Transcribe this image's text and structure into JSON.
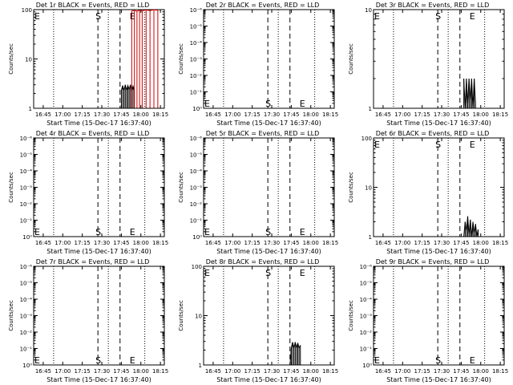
{
  "page": {
    "title_template": "BLACK = Events, RED = LLD",
    "x_title": "Start Time (15-Dec-17 16:37:40)",
    "y_title": "Counts/sec"
  },
  "colors": {
    "events": "#000000",
    "lld": "#cc0000",
    "axes": "#000000",
    "background": "#ffffff"
  },
  "chart_data": [
    {
      "type": "line",
      "title": "Det 1r BLACK = Events, RED = LLD",
      "xlabel": "Start Time (15-Dec-17 16:37:40)",
      "ylabel": "Counts/sec",
      "x_ticks": [
        "16:45",
        "17:00",
        "17:15",
        "17:30",
        "17:45",
        "18:00",
        "18:15"
      ],
      "y_ticks": [
        "1",
        "10",
        "100"
      ],
      "ylim": [
        1,
        100
      ],
      "yscale": "log",
      "markers": {
        "S": "17:27",
        "E": "17:44"
      },
      "marker_label_pos": "top",
      "series": [
        {
          "name": "Events",
          "x": [
            "17:45",
            "17:46",
            "17:47",
            "17:48",
            "17:49",
            "17:50",
            "17:51",
            "17:52",
            "17:53",
            "17:54",
            "17:55"
          ],
          "values": [
            2.3,
            2.9,
            2.3,
            3.0,
            2.3,
            2.9,
            2.4,
            3.0,
            2.3,
            2.8,
            2.3
          ]
        },
        {
          "name": "LLD",
          "x": [
            "17:53",
            "17:55",
            "17:57",
            "17:59",
            "18:01",
            "18:04",
            "18:07",
            "18:10",
            "18:13"
          ],
          "values": [
            95,
            96,
            93,
            97,
            95,
            98,
            96,
            99,
            97
          ]
        }
      ]
    },
    {
      "type": "line",
      "title": "Det 2r BLACK = Events, RED = LLD",
      "xlabel": "Start Time (15-Dec-17 16:37:40)",
      "ylabel": "Counts/sec",
      "x_ticks": [
        "16:45",
        "17:00",
        "17:15",
        "17:30",
        "17:45",
        "18:00",
        "18:15"
      ],
      "y_ticks": [
        "10⁰",
        "10⁻¹",
        "10⁻²",
        "10⁻³",
        "10⁻⁴",
        "10⁻⁵",
        "10⁻⁶"
      ],
      "ylim": [
        0,
        1
      ],
      "yscale": "log",
      "markers": {
        "S": "17:27",
        "E": "17:44"
      },
      "marker_label_pos": "bottom",
      "series": []
    },
    {
      "type": "line",
      "title": "Det 3r BLACK = Events, RED = LLD",
      "xlabel": "Start Time (15-Dec-17 16:37:40)",
      "ylabel": "Counts/sec",
      "x_ticks": [
        "16:45",
        "17:00",
        "17:15",
        "17:30",
        "17:45",
        "18:00",
        "18:15"
      ],
      "y_ticks": [
        "1",
        "10"
      ],
      "ylim": [
        1,
        10
      ],
      "yscale": "log",
      "markers": {
        "S": "17:27",
        "E": "17:44"
      },
      "marker_label_pos": "top",
      "series": [
        {
          "name": "Events",
          "x": [
            "17:47",
            "17:48",
            "17:49",
            "17:50",
            "17:51",
            "17:52",
            "17:53",
            "17:54",
            "17:55",
            "17:56"
          ],
          "values": [
            2.0,
            1.0,
            2.0,
            1.1,
            2.0,
            1.2,
            2.0,
            1.0,
            2.0,
            1.1
          ]
        }
      ]
    },
    {
      "type": "line",
      "title": "Det 4r BLACK = Events, RED = LLD",
      "xlabel": "Start Time (15-Dec-17 16:37:40)",
      "ylabel": "Counts/sec",
      "x_ticks": [
        "16:45",
        "17:00",
        "17:15",
        "17:30",
        "17:45",
        "18:00",
        "18:15"
      ],
      "y_ticks": [
        "10⁰",
        "10⁻¹",
        "10⁻²",
        "10⁻³",
        "10⁻⁴",
        "10⁻⁵",
        "10⁻⁶"
      ],
      "ylim": [
        0,
        1
      ],
      "yscale": "log",
      "markers": {
        "S": "17:27",
        "E": "17:44"
      },
      "marker_label_pos": "bottom",
      "series": []
    },
    {
      "type": "line",
      "title": "Det 5r BLACK = Events, RED = LLD",
      "xlabel": "Start Time (15-Dec-17 16:37:40)",
      "ylabel": "Counts/sec",
      "x_ticks": [
        "16:45",
        "17:00",
        "17:15",
        "17:30",
        "17:45",
        "18:00",
        "18:15"
      ],
      "y_ticks": [
        "10⁰",
        "10⁻¹",
        "10⁻²",
        "10⁻³",
        "10⁻⁴",
        "10⁻⁵",
        "10⁻⁶"
      ],
      "ylim": [
        0,
        1
      ],
      "yscale": "log",
      "markers": {
        "S": "17:27",
        "E": "17:44"
      },
      "marker_label_pos": "bottom",
      "series": []
    },
    {
      "type": "line",
      "title": "Det 6r BLACK = Events, RED = LLD",
      "xlabel": "Start Time (15-Dec-17 16:37:40)",
      "ylabel": "Counts/sec",
      "x_ticks": [
        "16:45",
        "17:00",
        "17:15",
        "17:30",
        "17:45",
        "18:00",
        "18:15"
      ],
      "y_ticks": [
        "1",
        "10",
        "100"
      ],
      "ylim": [
        1,
        100
      ],
      "yscale": "log",
      "markers": {
        "S": "17:27",
        "E": "17:44"
      },
      "marker_label_pos": "top",
      "series": [
        {
          "name": "Events",
          "x": [
            "17:47",
            "17:48",
            "17:49",
            "17:50",
            "17:51",
            "17:52",
            "17:53",
            "17:54",
            "17:55",
            "17:56",
            "17:57",
            "17:58"
          ],
          "values": [
            1.0,
            2.0,
            1.3,
            2.6,
            1.1,
            2.2,
            1.0,
            2.0,
            1.2,
            1.8,
            1.0,
            1.4
          ]
        }
      ]
    },
    {
      "type": "line",
      "title": "Det 7r BLACK = Events, RED = LLD",
      "xlabel": "Start Time (15-Dec-17 16:37:40)",
      "ylabel": "Counts/sec",
      "x_ticks": [
        "16:45",
        "17:00",
        "17:15",
        "17:30",
        "17:45",
        "18:00",
        "18:15"
      ],
      "y_ticks": [
        "10⁰",
        "10⁻¹",
        "10⁻²",
        "10⁻³",
        "10⁻⁴",
        "10⁻⁵",
        "10⁻⁶"
      ],
      "ylim": [
        0,
        1
      ],
      "yscale": "log",
      "markers": {
        "S": "17:27",
        "E": "17:44"
      },
      "marker_label_pos": "bottom",
      "series": []
    },
    {
      "type": "line",
      "title": "Det 8r BLACK = Events, RED = LLD",
      "xlabel": "Start Time (15-Dec-17 16:37:40)",
      "ylabel": "Counts/sec",
      "x_ticks": [
        "16:45",
        "17:00",
        "17:15",
        "17:30",
        "17:45",
        "18:00",
        "18:15"
      ],
      "y_ticks": [
        "1",
        "10",
        "100"
      ],
      "ylim": [
        1,
        100
      ],
      "yscale": "log",
      "markers": {
        "S": "17:27",
        "E": "17:44"
      },
      "marker_label_pos": "top",
      "series": [
        {
          "name": "Events",
          "x": [
            "17:44",
            "17:45",
            "17:46",
            "17:47",
            "17:48",
            "17:49",
            "17:50",
            "17:51",
            "17:52"
          ],
          "values": [
            1.0,
            2.2,
            2.9,
            2.2,
            2.9,
            2.2,
            2.8,
            2.2,
            2.5
          ]
        }
      ]
    },
    {
      "type": "line",
      "title": "Det 9r BLACK = Events, RED = LLD",
      "xlabel": "Start Time (15-Dec-17 16:37:40)",
      "ylabel": "Counts/sec",
      "x_ticks": [
        "16:45",
        "17:00",
        "17:15",
        "17:30",
        "17:45",
        "18:00",
        "18:15"
      ],
      "y_ticks": [
        "10⁰",
        "10⁻¹",
        "10⁻²",
        "10⁻³",
        "10⁻⁴",
        "10⁻⁵",
        "10⁻⁶"
      ],
      "ylim": [
        0,
        1
      ],
      "yscale": "log",
      "markers": {
        "S": "17:27",
        "E": "17:44"
      },
      "marker_label_pos": "bottom",
      "series": []
    }
  ]
}
